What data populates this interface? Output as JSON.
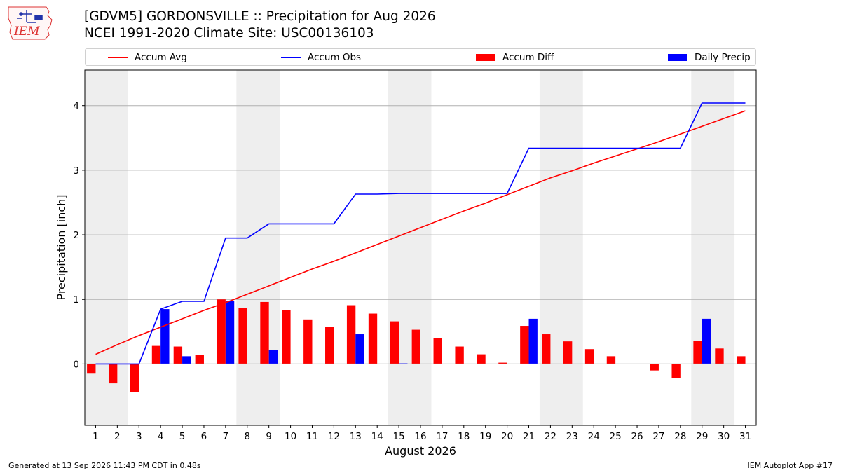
{
  "title_line1": "[GDVM5] GORDONSVILLE :: Precipitation for Aug 2026",
  "title_line2": "NCEI 1991-2020 Climate Site: USC00136103",
  "logo_text": "IEM",
  "footer_left": "Generated at 13 Sep 2026 11:43 PM CDT in 0.48s",
  "footer_right": "IEM Autoplot App #17",
  "colors": {
    "accum_avg": "#ff0000",
    "accum_obs": "#0000ff",
    "accum_diff": "#ff0000",
    "daily_precip": "#0000ff",
    "weekend_shade": "#eeeeee",
    "grid": "#b0b0b0"
  },
  "chart_data": {
    "type": "bar",
    "xlabel": "August 2026",
    "ylabel": "Precipitation [inch]",
    "x": [
      1,
      2,
      3,
      4,
      5,
      6,
      7,
      8,
      9,
      10,
      11,
      12,
      13,
      14,
      15,
      16,
      17,
      18,
      19,
      20,
      21,
      22,
      23,
      24,
      25,
      26,
      27,
      28,
      29,
      30,
      31
    ],
    "xlim": [
      0.5,
      31.5
    ],
    "ylim": [
      -0.95,
      4.55
    ],
    "yticks": [
      0,
      1,
      2,
      3,
      4
    ],
    "grid": "horizontal",
    "legend_position": "top, outside plot",
    "shaded_weekend_days": [
      [
        1,
        2
      ],
      [
        8,
        9
      ],
      [
        15,
        16
      ],
      [
        22,
        23
      ],
      [
        29,
        30
      ]
    ],
    "series": [
      {
        "name": "Accum Avg",
        "kind": "line",
        "values": [
          0.15,
          0.3,
          0.44,
          0.57,
          0.7,
          0.83,
          0.95,
          1.08,
          1.21,
          1.34,
          1.47,
          1.59,
          1.72,
          1.85,
          1.98,
          2.11,
          2.24,
          2.37,
          2.49,
          2.62,
          2.75,
          2.88,
          2.99,
          3.11,
          3.22,
          3.33,
          3.44,
          3.56,
          3.68,
          3.8,
          3.92
        ]
      },
      {
        "name": "Accum Obs",
        "kind": "line",
        "values": [
          0.0,
          0.0,
          0.0,
          0.85,
          0.97,
          0.97,
          1.95,
          1.95,
          2.17,
          2.17,
          2.17,
          2.17,
          2.63,
          2.63,
          2.64,
          2.64,
          2.64,
          2.64,
          2.64,
          2.64,
          3.34,
          3.34,
          3.34,
          3.34,
          3.34,
          3.34,
          3.34,
          3.34,
          4.04,
          4.04,
          4.04
        ]
      },
      {
        "name": "Accum Diff",
        "kind": "bar",
        "values": [
          -0.15,
          -0.3,
          -0.44,
          0.28,
          0.27,
          0.14,
          1.0,
          0.87,
          0.96,
          0.83,
          0.69,
          0.57,
          0.91,
          0.78,
          0.66,
          0.53,
          0.4,
          0.27,
          0.15,
          0.02,
          0.59,
          0.46,
          0.35,
          0.23,
          0.12,
          0.0,
          -0.1,
          -0.22,
          0.36,
          0.24,
          0.12
        ]
      },
      {
        "name": "Daily Precip",
        "kind": "bar",
        "values": [
          0,
          0,
          0,
          0.85,
          0.12,
          0,
          0.98,
          0,
          0.22,
          0,
          0,
          0,
          0.46,
          0,
          0.01,
          0,
          0,
          0,
          0,
          0,
          0.7,
          0,
          0,
          0,
          0,
          0,
          0,
          0,
          0.7,
          0,
          0
        ]
      }
    ]
  }
}
